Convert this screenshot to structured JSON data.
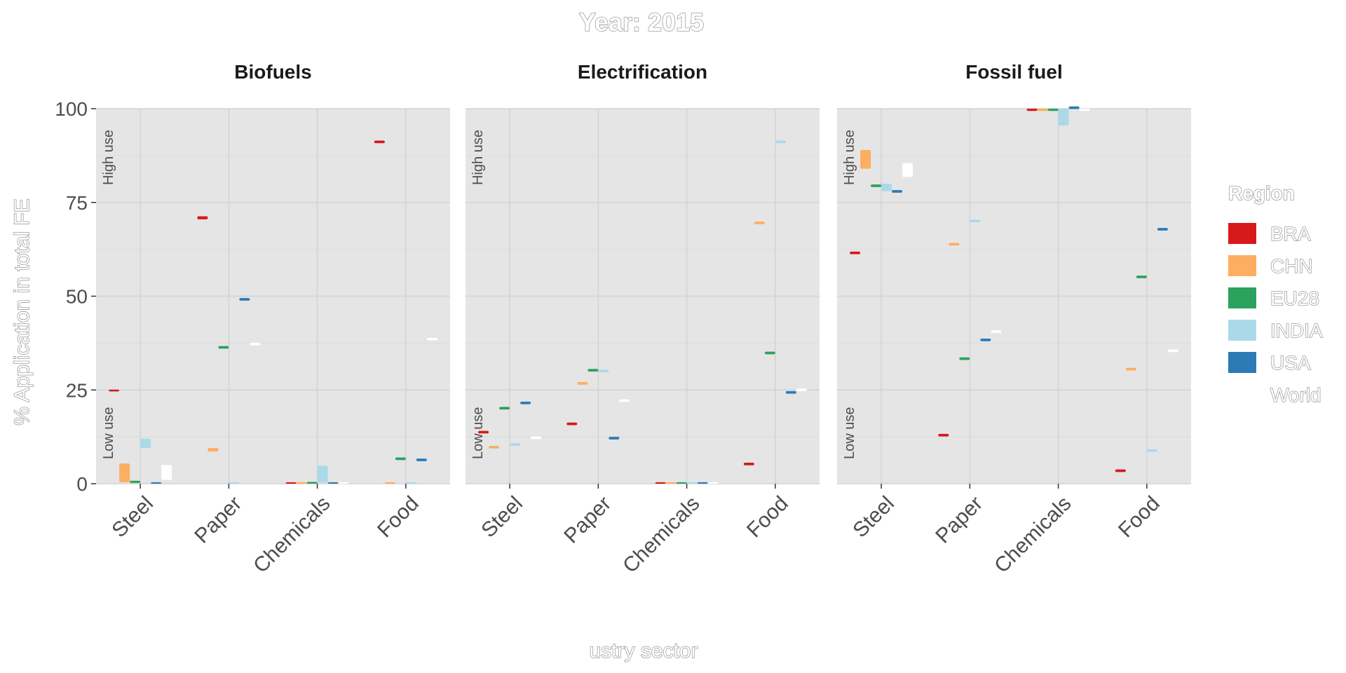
{
  "chart_data": {
    "type": "bar",
    "title": "Year: 2015",
    "xlabel": "ustry sector",
    "ylabel": "% Application in total FE",
    "ylim": [
      0,
      100
    ],
    "yticks": [
      0,
      25,
      50,
      75,
      100
    ],
    "categories": [
      "Steel",
      "Paper",
      "Chemicals",
      "Food"
    ],
    "regions": [
      "BRA",
      "CHN",
      "EU28",
      "INDIA",
      "USA",
      "World"
    ],
    "legend": {
      "title": "Region",
      "position": "right"
    },
    "band_labels": {
      "high": "High use",
      "low": "Low use"
    },
    "grid": true,
    "colors": {
      "BRA": "#d7191c",
      "CHN": "#fdae61",
      "EU28": "#2ca25f",
      "INDIA": "#abd9e9",
      "USA": "#2c7bb6",
      "World": "#ffffff",
      "panel_bg": "#e5e5e5",
      "grid_major": "#d4d4d4",
      "grid_minor": "#dcdcdc",
      "axis_text": "#4d4d4d",
      "strip_text": "#1a1a1a"
    },
    "panels": [
      {
        "name": "Biofuels",
        "series": [
          {
            "name": "BRA",
            "values": [
              [
                24.6,
                25.1
              ],
              [
                70.5,
                71.3
              ],
              [
                0.0,
                0.4
              ],
              [
                90.8,
                91.5
              ]
            ]
          },
          {
            "name": "CHN",
            "values": [
              [
                0.4,
                5.4
              ],
              [
                8.6,
                9.5
              ],
              [
                0.0,
                0.4
              ],
              [
                0.0,
                0.4
              ]
            ]
          },
          {
            "name": "EU28",
            "values": [
              [
                0.2,
                0.8
              ],
              [
                36.0,
                36.7
              ],
              [
                0.0,
                0.5
              ],
              [
                6.3,
                7.0
              ]
            ]
          },
          {
            "name": "INDIA",
            "values": [
              [
                9.5,
                12.0
              ],
              [
                0.0,
                0.4
              ],
              [
                0.3,
                4.8
              ],
              [
                0.0,
                0.4
              ]
            ]
          },
          {
            "name": "USA",
            "values": [
              [
                0.0,
                0.4
              ],
              [
                48.8,
                49.5
              ],
              [
                0.0,
                0.4
              ],
              [
                6.0,
                6.7
              ]
            ]
          },
          {
            "name": "World",
            "values": [
              [
                1.0,
                5.0
              ],
              [
                36.9,
                37.6
              ],
              [
                0.0,
                0.4
              ],
              [
                38.2,
                38.9
              ]
            ]
          }
        ]
      },
      {
        "name": "Electrification",
        "series": [
          {
            "name": "BRA",
            "values": [
              [
                13.4,
                14.1
              ],
              [
                15.6,
                16.3
              ],
              [
                0.0,
                0.4
              ],
              [
                4.9,
                5.6
              ]
            ]
          },
          {
            "name": "CHN",
            "values": [
              [
                9.4,
                10.1
              ],
              [
                26.4,
                27.1
              ],
              [
                0.0,
                0.4
              ],
              [
                69.2,
                69.9
              ]
            ]
          },
          {
            "name": "EU28",
            "values": [
              [
                19.8,
                20.5
              ],
              [
                29.9,
                30.6
              ],
              [
                0.0,
                0.4
              ],
              [
                34.5,
                35.2
              ]
            ]
          },
          {
            "name": "INDIA",
            "values": [
              [
                10.1,
                10.8
              ],
              [
                29.7,
                30.4
              ],
              [
                0.0,
                0.4
              ],
              [
                90.8,
                91.5
              ]
            ]
          },
          {
            "name": "USA",
            "values": [
              [
                21.2,
                21.9
              ],
              [
                11.8,
                12.5
              ],
              [
                0.0,
                0.4
              ],
              [
                24.0,
                24.7
              ]
            ]
          },
          {
            "name": "World",
            "values": [
              [
                11.9,
                12.6
              ],
              [
                21.8,
                22.5
              ],
              [
                0.0,
                0.4
              ],
              [
                24.7,
                25.4
              ]
            ]
          }
        ]
      },
      {
        "name": "Fossil fuel",
        "series": [
          {
            "name": "BRA",
            "values": [
              [
                61.2,
                61.9
              ],
              [
                12.6,
                13.3
              ],
              [
                99.4,
                100.0
              ],
              [
                3.1,
                3.8
              ]
            ]
          },
          {
            "name": "CHN",
            "values": [
              [
                84.0,
                89.0
              ],
              [
                63.5,
                64.2
              ],
              [
                99.4,
                100.0
              ],
              [
                30.2,
                30.9
              ]
            ]
          },
          {
            "name": "EU28",
            "values": [
              [
                79.1,
                79.8
              ],
              [
                33.0,
                33.7
              ],
              [
                99.4,
                100.0
              ],
              [
                54.8,
                55.5
              ]
            ]
          },
          {
            "name": "INDIA",
            "values": [
              [
                78.0,
                80.0
              ],
              [
                69.7,
                70.4
              ],
              [
                95.5,
                100.0
              ],
              [
                8.5,
                9.2
              ]
            ]
          },
          {
            "name": "USA",
            "values": [
              [
                77.6,
                78.3
              ],
              [
                38.0,
                38.7
              ],
              [
                99.9,
                100.6
              ],
              [
                67.5,
                68.2
              ]
            ]
          },
          {
            "name": "World",
            "values": [
              [
                81.8,
                85.5
              ],
              [
                40.2,
                40.9
              ],
              [
                99.4,
                100.0
              ],
              [
                35.1,
                35.8
              ]
            ]
          }
        ]
      }
    ]
  }
}
